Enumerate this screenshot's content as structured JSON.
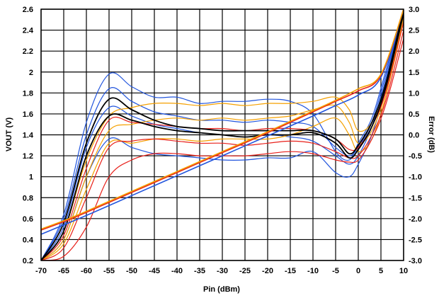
{
  "chart_data": {
    "type": "line",
    "title": "",
    "xlabel": "Pin (dBm)",
    "ylabel": "VOUT (V)",
    "y2label": "Error (dB)",
    "xlim": [
      -70,
      10
    ],
    "ylim": [
      0.2,
      2.6
    ],
    "y2lim": [
      -3.0,
      3.0
    ],
    "grid": true,
    "legend": "none",
    "x_ticks": [
      "-70",
      "-65",
      "-60",
      "-55",
      "-50",
      "-45",
      "-40",
      "-35",
      "-30",
      "-25",
      "-20",
      "-15",
      "-10",
      "-5",
      "0",
      "5",
      "10"
    ],
    "y_ticks": [
      "0.2",
      "0.4",
      "0.6",
      "0.8",
      "1",
      "1.2",
      "1.4",
      "1.6",
      "1.8",
      "2",
      "2.2",
      "2.4",
      "2.6"
    ],
    "y2_ticks": [
      "-3.0",
      "-2.5",
      "-2.0",
      "-1.5",
      "-1.0",
      "-0.5",
      "0.0",
      "0.5",
      "1.0",
      "1.5",
      "2.0",
      "2.5",
      "3.0"
    ],
    "colors": {
      "blue": "#2255dd",
      "orange": "#f5a000",
      "red": "#e8201a",
      "black": "#000000",
      "brown": "#b05a20"
    },
    "vout_curves": [
      {
        "color": "#2255dd",
        "axis": "left",
        "x": [
          -70,
          -65,
          -60,
          -50,
          -40,
          -30,
          -20,
          -10,
          -5,
          0,
          5,
          10
        ],
        "y": [
          0.45,
          0.54,
          0.63,
          0.82,
          1.01,
          1.2,
          1.39,
          1.58,
          1.68,
          1.78,
          1.95,
          2.6
        ]
      },
      {
        "color": "#e8201a",
        "axis": "left",
        "x": [
          -70,
          -65,
          -60,
          -50,
          -40,
          -30,
          -20,
          -10,
          -5,
          0,
          5,
          10
        ],
        "y": [
          0.49,
          0.57,
          0.66,
          0.85,
          1.04,
          1.23,
          1.42,
          1.62,
          1.72,
          1.82,
          1.97,
          2.6
        ]
      },
      {
        "color": "#f5a000",
        "axis": "left",
        "x": [
          -70,
          -65,
          -60,
          -50,
          -40,
          -30,
          -20,
          -10,
          -5,
          0,
          5,
          10
        ],
        "y": [
          0.5,
          0.58,
          0.67,
          0.86,
          1.05,
          1.24,
          1.43,
          1.63,
          1.73,
          1.84,
          1.98,
          2.6
        ]
      }
    ],
    "error_curves": [
      {
        "color": "#2255dd",
        "axis": "right",
        "x": [
          -70,
          -65,
          -60,
          -55,
          -50,
          -45,
          -40,
          -35,
          -30,
          -25,
          -20,
          -15,
          -10,
          -5,
          -2,
          0,
          3,
          6,
          10
        ],
        "y": [
          -3.0,
          -1.9,
          0.3,
          1.45,
          1.15,
          0.9,
          0.9,
          0.75,
          0.8,
          0.8,
          0.85,
          0.8,
          0.5,
          -0.4,
          -0.6,
          -0.2,
          0.4,
          1.5,
          3.0
        ]
      },
      {
        "color": "#2255dd",
        "axis": "right",
        "x": [
          -70,
          -65,
          -60,
          -55,
          -50,
          -45,
          -40,
          -35,
          -30,
          -25,
          -20,
          -15,
          -10,
          -5,
          -2,
          0,
          3,
          6,
          10
        ],
        "y": [
          -3.0,
          -2.2,
          -0.3,
          0.65,
          0.45,
          0.25,
          0.15,
          0.05,
          0.0,
          -0.05,
          0.0,
          -0.05,
          -0.15,
          -0.5,
          -0.7,
          -0.5,
          0.2,
          1.3,
          3.0
        ]
      },
      {
        "color": "#2255dd",
        "axis": "right",
        "x": [
          -70,
          -65,
          -60,
          -55,
          -50,
          -45,
          -40,
          -35,
          -30,
          -25,
          -20,
          -15,
          -10,
          -5,
          -2,
          0,
          3,
          6,
          10
        ],
        "y": [
          -3.0,
          -2.5,
          -1.0,
          -0.1,
          -0.3,
          -0.45,
          -0.5,
          -0.55,
          -0.6,
          -0.6,
          -0.55,
          -0.55,
          -0.4,
          -0.9,
          -1.0,
          -0.7,
          0.0,
          1.1,
          3.0
        ]
      },
      {
        "color": "#2255dd",
        "axis": "right",
        "x": [
          -70,
          -65,
          -60,
          -55,
          -50,
          -45,
          -40,
          -35,
          -30,
          -25,
          -20,
          -15,
          -10,
          -5,
          -2,
          0,
          3,
          6,
          10
        ],
        "y": [
          -3.0,
          -2.0,
          0.0,
          1.1,
          0.8,
          0.55,
          0.45,
          0.35,
          0.35,
          0.3,
          0.35,
          0.3,
          0.2,
          -0.3,
          -0.5,
          -0.3,
          0.3,
          1.4,
          3.0
        ]
      },
      {
        "color": "#f5a000",
        "axis": "right",
        "x": [
          -70,
          -65,
          -60,
          -55,
          -50,
          -45,
          -40,
          -35,
          -30,
          -25,
          -20,
          -15,
          -10,
          -5,
          -2,
          0,
          3,
          6,
          10
        ],
        "y": [
          -3.0,
          -2.3,
          -0.6,
          0.45,
          0.65,
          0.75,
          0.75,
          0.7,
          0.75,
          0.7,
          0.75,
          0.75,
          0.8,
          0.9,
          0.6,
          0.1,
          0.3,
          1.2,
          2.9
        ]
      },
      {
        "color": "#f5a000",
        "axis": "right",
        "x": [
          -70,
          -65,
          -60,
          -55,
          -50,
          -45,
          -40,
          -35,
          -30,
          -25,
          -20,
          -15,
          -10,
          -5,
          -2,
          0,
          3,
          6,
          10
        ],
        "y": [
          -3.0,
          -2.5,
          -1.0,
          0.1,
          0.25,
          0.35,
          0.4,
          0.35,
          0.4,
          0.35,
          0.4,
          0.45,
          0.6,
          0.7,
          0.3,
          -0.2,
          0.1,
          1.0,
          2.8
        ]
      },
      {
        "color": "#f5a000",
        "axis": "right",
        "x": [
          -70,
          -65,
          -60,
          -55,
          -50,
          -45,
          -40,
          -35,
          -30,
          -25,
          -20,
          -15,
          -10,
          -5,
          -2,
          0,
          3,
          6,
          10
        ],
        "y": [
          -3.0,
          -2.6,
          -1.3,
          -0.2,
          -0.2,
          -0.1,
          -0.1,
          -0.15,
          -0.1,
          -0.1,
          -0.1,
          0.0,
          0.2,
          0.4,
          0.0,
          -0.4,
          -0.1,
          0.9,
          2.7
        ]
      },
      {
        "color": "#e8201a",
        "axis": "right",
        "x": [
          -70,
          -65,
          -60,
          -55,
          -50,
          -45,
          -40,
          -35,
          -30,
          -25,
          -20,
          -15,
          -10,
          -5,
          -2,
          0,
          3,
          6,
          10
        ],
        "y": [
          -3.0,
          -2.4,
          -0.8,
          0.35,
          0.3,
          0.25,
          0.2,
          0.15,
          0.15,
          0.1,
          0.15,
          0.15,
          0.1,
          -0.1,
          -0.35,
          -0.3,
          0.2,
          1.0,
          2.7
        ]
      },
      {
        "color": "#e8201a",
        "axis": "right",
        "x": [
          -70,
          -65,
          -60,
          -55,
          -50,
          -45,
          -40,
          -35,
          -30,
          -25,
          -20,
          -15,
          -10,
          -5,
          -2,
          0,
          3,
          6,
          10
        ],
        "y": [
          -3.0,
          -2.7,
          -1.5,
          -0.3,
          -0.15,
          -0.1,
          -0.15,
          -0.2,
          -0.2,
          -0.25,
          -0.2,
          -0.15,
          -0.2,
          -0.4,
          -0.55,
          -0.5,
          0.0,
          0.8,
          2.5
        ]
      },
      {
        "color": "#e8201a",
        "axis": "right",
        "x": [
          -70,
          -65,
          -60,
          -55,
          -50,
          -45,
          -40,
          -35,
          -30,
          -25,
          -20,
          -15,
          -10,
          -5,
          -2,
          0,
          3,
          6,
          10
        ],
        "y": [
          -3.0,
          -2.9,
          -2.2,
          -1.0,
          -0.6,
          -0.45,
          -0.45,
          -0.5,
          -0.5,
          -0.5,
          -0.45,
          -0.4,
          -0.45,
          -0.6,
          -0.65,
          -0.6,
          -0.1,
          0.7,
          2.3
        ]
      },
      {
        "color": "#000000",
        "axis": "right",
        "x": [
          -70,
          -65,
          -60,
          -55,
          -50,
          -45,
          -40,
          -35,
          -30,
          -25,
          -20,
          -15,
          -10,
          -5,
          -2,
          0,
          3,
          6,
          10
        ],
        "y": [
          -3.0,
          -2.3,
          -0.5,
          0.45,
          0.35,
          0.2,
          0.1,
          0.05,
          0.0,
          -0.05,
          0.0,
          0.0,
          0.05,
          -0.2,
          -0.55,
          -0.35,
          0.2,
          1.1,
          2.9
        ]
      },
      {
        "color": "#000000",
        "axis": "right",
        "x": [
          -70,
          -65,
          -60,
          -55,
          -50,
          -45,
          -40,
          -35,
          -30,
          -25,
          -20,
          -15,
          -10,
          -5,
          -2,
          0,
          3,
          6,
          10
        ],
        "y": [
          -3.0,
          -2.1,
          -0.2,
          0.85,
          0.6,
          0.35,
          0.2,
          0.15,
          0.1,
          0.1,
          0.1,
          0.1,
          0.1,
          -0.1,
          -0.45,
          -0.25,
          0.3,
          1.2,
          3.0
        ]
      }
    ]
  }
}
